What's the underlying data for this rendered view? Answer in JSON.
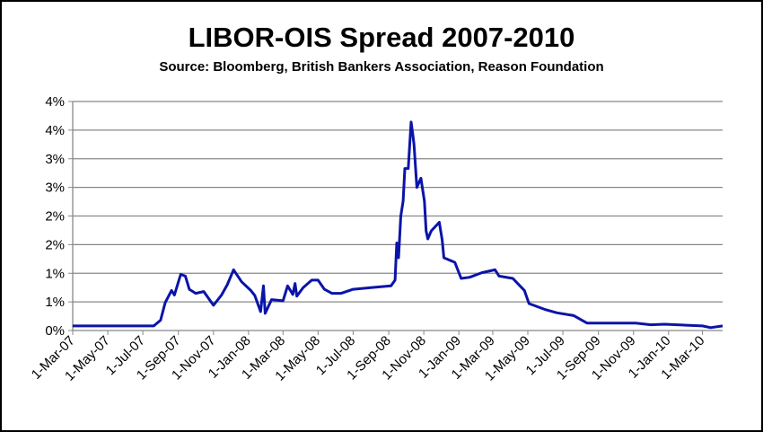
{
  "chart_data": {
    "type": "line",
    "title": "LIBOR-OIS Spread 2007-2010",
    "subtitle": "Source: Bloomberg, British Bankers Association, Reason Foundation",
    "xlabel": "",
    "ylabel": "",
    "xlim": [
      "2007-03-01",
      "2010-04-05"
    ],
    "ylim": [
      0,
      4
    ],
    "grid": "horizontal",
    "line_color": "#0A14A8",
    "y_ticks": [
      {
        "value": 0,
        "label": "0%"
      },
      {
        "value": 0.5,
        "label": "1%"
      },
      {
        "value": 1,
        "label": "1%"
      },
      {
        "value": 1.5,
        "label": "2%"
      },
      {
        "value": 2,
        "label": "2%"
      },
      {
        "value": 2.5,
        "label": "3%"
      },
      {
        "value": 3,
        "label": "3%"
      },
      {
        "value": 3.5,
        "label": "4%"
      },
      {
        "value": 4,
        "label": "4%"
      }
    ],
    "x_ticks": [
      {
        "date": "2007-03-01",
        "label": "1-Mar-07"
      },
      {
        "date": "2007-05-01",
        "label": "1-May-07"
      },
      {
        "date": "2007-07-01",
        "label": "1-Jul-07"
      },
      {
        "date": "2007-09-01",
        "label": "1-Sep-07"
      },
      {
        "date": "2007-11-01",
        "label": "1-Nov-07"
      },
      {
        "date": "2008-01-01",
        "label": "1-Jan-08"
      },
      {
        "date": "2008-03-01",
        "label": "1-Mar-08"
      },
      {
        "date": "2008-05-01",
        "label": "1-May-08"
      },
      {
        "date": "2008-07-01",
        "label": "1-Jul-08"
      },
      {
        "date": "2008-09-01",
        "label": "1-Sep-08"
      },
      {
        "date": "2008-11-01",
        "label": "1-Nov-08"
      },
      {
        "date": "2009-01-01",
        "label": "1-Jan-09"
      },
      {
        "date": "2009-03-01",
        "label": "1-Mar-09"
      },
      {
        "date": "2009-05-01",
        "label": "1-May-09"
      },
      {
        "date": "2009-07-01",
        "label": "1-Jul-09"
      },
      {
        "date": "2009-09-01",
        "label": "1-Sep-09"
      },
      {
        "date": "2009-11-01",
        "label": "1-Nov-09"
      },
      {
        "date": "2010-01-01",
        "label": "1-Jan-10"
      },
      {
        "date": "2010-03-01",
        "label": "1-Mar-10"
      }
    ],
    "series": [
      {
        "points": [
          [
            "2007-03-01",
            0.08
          ],
          [
            "2007-04-01",
            0.08
          ],
          [
            "2007-05-01",
            0.08
          ],
          [
            "2007-06-15",
            0.08
          ],
          [
            "2007-07-20",
            0.08
          ],
          [
            "2007-08-01",
            0.18
          ],
          [
            "2007-08-09",
            0.49
          ],
          [
            "2007-08-20",
            0.7
          ],
          [
            "2007-08-25",
            0.62
          ],
          [
            "2007-09-05",
            0.98
          ],
          [
            "2007-09-13",
            0.95
          ],
          [
            "2007-09-20",
            0.72
          ],
          [
            "2007-10-01",
            0.65
          ],
          [
            "2007-10-15",
            0.68
          ],
          [
            "2007-11-01",
            0.44
          ],
          [
            "2007-11-15",
            0.62
          ],
          [
            "2007-11-25",
            0.8
          ],
          [
            "2007-12-06",
            1.06
          ],
          [
            "2007-12-20",
            0.85
          ],
          [
            "2008-01-05",
            0.7
          ],
          [
            "2008-01-12",
            0.61
          ],
          [
            "2008-01-22",
            0.33
          ],
          [
            "2008-01-27",
            0.78
          ],
          [
            "2008-01-30",
            0.3
          ],
          [
            "2008-02-10",
            0.54
          ],
          [
            "2008-03-01",
            0.52
          ],
          [
            "2008-03-09",
            0.78
          ],
          [
            "2008-03-18",
            0.63
          ],
          [
            "2008-03-22",
            0.82
          ],
          [
            "2008-03-25",
            0.6
          ],
          [
            "2008-04-05",
            0.75
          ],
          [
            "2008-04-20",
            0.88
          ],
          [
            "2008-05-01",
            0.88
          ],
          [
            "2008-05-12",
            0.72
          ],
          [
            "2008-05-25",
            0.65
          ],
          [
            "2008-06-10",
            0.65
          ],
          [
            "2008-07-01",
            0.72
          ],
          [
            "2008-08-01",
            0.75
          ],
          [
            "2008-09-05",
            0.78
          ],
          [
            "2008-09-12",
            0.88
          ],
          [
            "2008-09-15",
            1.53
          ],
          [
            "2008-09-18",
            1.27
          ],
          [
            "2008-09-22",
            2.0
          ],
          [
            "2008-09-26",
            2.26
          ],
          [
            "2008-09-29",
            2.83
          ],
          [
            "2008-10-05",
            2.83
          ],
          [
            "2008-10-10",
            3.64
          ],
          [
            "2008-10-13",
            3.41
          ],
          [
            "2008-10-15",
            3.25
          ],
          [
            "2008-10-20",
            2.5
          ],
          [
            "2008-10-27",
            2.66
          ],
          [
            "2008-11-02",
            2.26
          ],
          [
            "2008-11-05",
            1.74
          ],
          [
            "2008-11-08",
            1.6
          ],
          [
            "2008-11-14",
            1.74
          ],
          [
            "2008-11-28",
            1.89
          ],
          [
            "2008-12-03",
            1.58
          ],
          [
            "2008-12-06",
            1.27
          ],
          [
            "2008-12-25",
            1.19
          ],
          [
            "2009-01-05",
            0.91
          ],
          [
            "2009-01-20",
            0.93
          ],
          [
            "2009-02-10",
            1.01
          ],
          [
            "2009-03-05",
            1.06
          ],
          [
            "2009-03-12",
            0.95
          ],
          [
            "2009-04-05",
            0.91
          ],
          [
            "2009-04-25",
            0.7
          ],
          [
            "2009-05-03",
            0.47
          ],
          [
            "2009-05-30",
            0.37
          ],
          [
            "2009-06-20",
            0.31
          ],
          [
            "2009-07-20",
            0.26
          ],
          [
            "2009-08-12",
            0.13
          ],
          [
            "2009-09-10",
            0.13
          ],
          [
            "2009-11-05",
            0.13
          ],
          [
            "2009-12-01",
            0.1
          ],
          [
            "2009-12-25",
            0.11
          ],
          [
            "2010-03-01",
            0.08
          ],
          [
            "2010-03-15",
            0.05
          ],
          [
            "2010-04-05",
            0.08
          ]
        ]
      }
    ]
  }
}
